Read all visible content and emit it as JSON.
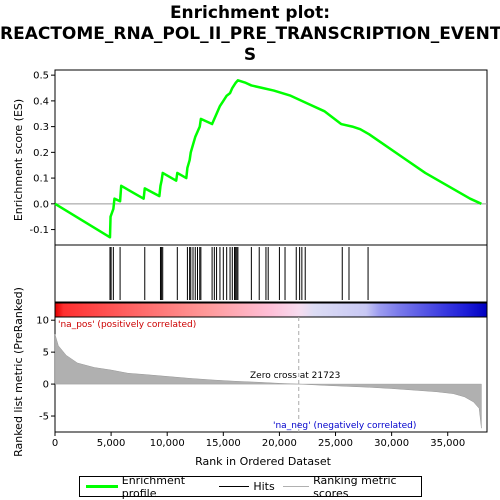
{
  "title": "Enrichment plot: REACTOME_RNA_POL_II_PRE_TRANSCRIPTION_EVENTS",
  "title_lines": [
    "Enrichment plot:",
    "REACTOME_RNA_POL_II_PRE_TRANSCRIPTION_EVENT",
    "S"
  ],
  "colors": {
    "es_line": "#00ff00",
    "hits": "#000000",
    "metric_fill": "#b0b0b0",
    "pos_label": "#cc0000",
    "neg_label": "#0000cc",
    "zero_line": "#aaaaaa"
  },
  "chart_data": {
    "type": "line",
    "es_panel": {
      "ylabel": "Enrichment score (ES)",
      "ylim": [
        -0.16,
        0.52
      ],
      "yticks": [
        -0.1,
        0.0,
        0.1,
        0.2,
        0.3,
        0.4,
        0.5
      ],
      "ytick_labels": [
        "-0.1",
        "0.0",
        "0.1",
        "0.2",
        "0.3",
        "0.4",
        "0.5"
      ],
      "points": [
        [
          0,
          0.0
        ],
        [
          4900,
          -0.13
        ],
        [
          4950,
          -0.05
        ],
        [
          5200,
          -0.02
        ],
        [
          5300,
          0.02
        ],
        [
          5800,
          0.01
        ],
        [
          5900,
          0.07
        ],
        [
          7900,
          0.02
        ],
        [
          8000,
          0.06
        ],
        [
          9300,
          0.03
        ],
        [
          9400,
          0.07
        ],
        [
          9500,
          0.09
        ],
        [
          9600,
          0.12
        ],
        [
          10800,
          0.09
        ],
        [
          10900,
          0.12
        ],
        [
          11700,
          0.1
        ],
        [
          11800,
          0.14
        ],
        [
          12000,
          0.17
        ],
        [
          12100,
          0.2
        ],
        [
          12300,
          0.23
        ],
        [
          12500,
          0.26
        ],
        [
          12700,
          0.28
        ],
        [
          12900,
          0.3
        ],
        [
          13000,
          0.33
        ],
        [
          14000,
          0.31
        ],
        [
          14200,
          0.33
        ],
        [
          14400,
          0.35
        ],
        [
          14700,
          0.38
        ],
        [
          15000,
          0.4
        ],
        [
          15300,
          0.42
        ],
        [
          15600,
          0.43
        ],
        [
          15800,
          0.45
        ],
        [
          16100,
          0.47
        ],
        [
          16300,
          0.48
        ],
        [
          17000,
          0.47
        ],
        [
          17500,
          0.46
        ],
        [
          18500,
          0.45
        ],
        [
          19500,
          0.44
        ],
        [
          21000,
          0.42
        ],
        [
          22500,
          0.39
        ],
        [
          24000,
          0.36
        ],
        [
          25500,
          0.31
        ],
        [
          26500,
          0.3
        ],
        [
          27200,
          0.29
        ],
        [
          28000,
          0.27
        ],
        [
          29000,
          0.24
        ],
        [
          31000,
          0.18
        ],
        [
          33000,
          0.12
        ],
        [
          35000,
          0.07
        ],
        [
          37000,
          0.02
        ],
        [
          38000,
          0.0
        ]
      ]
    },
    "hits": [
      4900,
      5000,
      5200,
      5800,
      8000,
      9400,
      9500,
      9600,
      10900,
      11800,
      12000,
      12100,
      12300,
      12500,
      12700,
      12900,
      13000,
      14000,
      14200,
      14400,
      14700,
      15000,
      15300,
      15600,
      15800,
      16000,
      16100,
      16200,
      16300,
      17500,
      18200,
      18800,
      19000,
      20000,
      20500,
      21500,
      21800,
      22000,
      22300,
      25600,
      26200,
      27900
    ],
    "metric_panel": {
      "ylabel": "Ranked list metric (PreRanked)",
      "ylim": [
        -7.5,
        10.5
      ],
      "yticks": [
        -5,
        0,
        5,
        10
      ],
      "ytick_labels": [
        "-5",
        "0",
        "5",
        "10"
      ],
      "xlabel": "Rank in Ordered Dataset",
      "xlim": [
        0,
        38500
      ],
      "xticks": [
        0,
        5000,
        10000,
        15000,
        20000,
        25000,
        30000,
        35000
      ],
      "xtick_labels": [
        "0",
        "5,000",
        "10,000",
        "15,000",
        "20,000",
        "25,000",
        "30,000",
        "35,000"
      ],
      "profile": [
        [
          0,
          7.8
        ],
        [
          300,
          6.0
        ],
        [
          1000,
          4.5
        ],
        [
          2000,
          3.3
        ],
        [
          3500,
          2.6
        ],
        [
          5000,
          2.2
        ],
        [
          6500,
          1.7
        ],
        [
          8000,
          1.5
        ],
        [
          10000,
          1.2
        ],
        [
          12000,
          0.9
        ],
        [
          14000,
          0.65
        ],
        [
          16000,
          0.45
        ],
        [
          18000,
          0.3
        ],
        [
          20000,
          0.12
        ],
        [
          21723,
          0.0
        ],
        [
          24000,
          -0.2
        ],
        [
          26000,
          -0.35
        ],
        [
          28000,
          -0.5
        ],
        [
          30000,
          -0.7
        ],
        [
          32000,
          -0.95
        ],
        [
          34000,
          -1.2
        ],
        [
          35500,
          -1.5
        ],
        [
          36500,
          -2.0
        ],
        [
          37300,
          -2.8
        ],
        [
          37800,
          -3.8
        ],
        [
          38000,
          -6.9
        ]
      ],
      "zero_cross_rank": 21723,
      "zero_cross_label": "Zero cross at 21723",
      "pos_label": "'na_pos' (positively correlated)",
      "neg_label": "'na_neg' (negatively correlated)"
    },
    "legend": {
      "placement": "bottom",
      "items": [
        "Enrichment profile",
        "Hits",
        "Ranking metric scores"
      ]
    }
  }
}
